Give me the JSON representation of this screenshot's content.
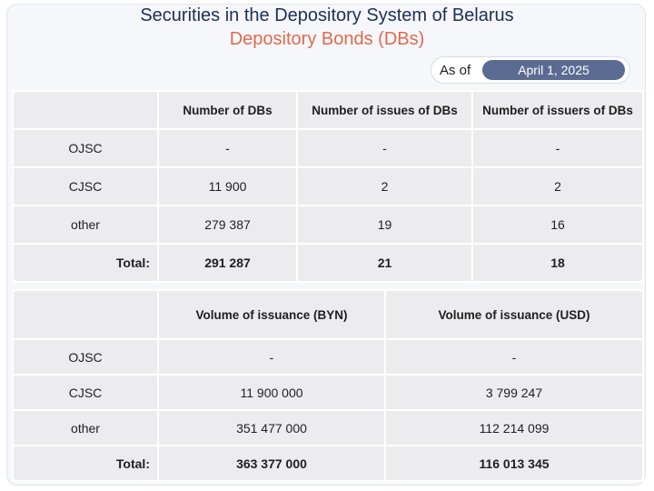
{
  "header": {
    "title": "Securities in the Depository System of Belarus",
    "subtitle": "Depository Bonds (DBs)",
    "as_of_label": "As of",
    "as_of_date": "April 1, 2025"
  },
  "table1": {
    "columns": [
      "",
      "Number of DBs",
      "Number of issues of DBs",
      "Number of issuers of DBs"
    ],
    "rows": [
      {
        "label": "OJSC",
        "values": [
          "-",
          "-",
          "-"
        ]
      },
      {
        "label": "CJSC",
        "values": [
          "11 900",
          "2",
          "2"
        ]
      },
      {
        "label": "other",
        "values": [
          "279 387",
          "19",
          "16"
        ]
      },
      {
        "label": "Total:",
        "values": [
          "291 287",
          "21",
          "18"
        ]
      }
    ]
  },
  "table2": {
    "columns": [
      "",
      "Volume of issuance (BYN)",
      "Volume of issuance (USD)"
    ],
    "rows": [
      {
        "label": "OJSC",
        "values": [
          "-",
          "-"
        ]
      },
      {
        "label": "CJSC",
        "values": [
          "11 900 000",
          "3 799 247"
        ]
      },
      {
        "label": "other",
        "values": [
          "351 477 000",
          "112 214 099"
        ]
      },
      {
        "label": "Total:",
        "values": [
          "363 377 000",
          "116 013 345"
        ]
      }
    ]
  },
  "colors": {
    "title": "#1d2e57",
    "subtitle": "#e06a4c",
    "date_pill": "#5b6b92",
    "cell_bg": "#ececee"
  }
}
